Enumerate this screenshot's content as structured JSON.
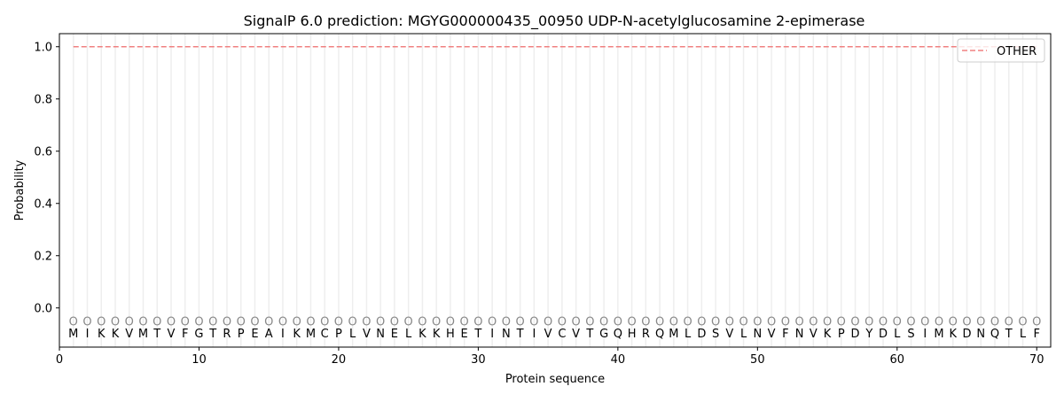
{
  "chart_data": {
    "type": "line",
    "title": "SignalP 6.0 prediction: MGYG000000435_00950 UDP-N-acetylglucosamine 2-epimerase",
    "xlabel": "Protein sequence",
    "ylabel": "Probability",
    "xlim": [
      0,
      71
    ],
    "ylim": [
      -0.15,
      1.05
    ],
    "xticks": [
      0,
      10,
      20,
      30,
      40,
      50,
      60,
      70
    ],
    "yticks": [
      0.0,
      0.2,
      0.4,
      0.6,
      0.8,
      1.0
    ],
    "ytick_labels": [
      "0.0",
      "0.2",
      "0.4",
      "0.6",
      "0.8",
      "1.0"
    ],
    "sequence": [
      "M",
      "I",
      "K",
      "K",
      "V",
      "M",
      "T",
      "V",
      "F",
      "G",
      "T",
      "R",
      "P",
      "E",
      "A",
      "I",
      "K",
      "M",
      "C",
      "P",
      "L",
      "V",
      "N",
      "E",
      "L",
      "K",
      "K",
      "H",
      "E",
      "T",
      "I",
      "N",
      "T",
      "I",
      "V",
      "C",
      "V",
      "T",
      "G",
      "Q",
      "H",
      "R",
      "Q",
      "M",
      "L",
      "D",
      "S",
      "V",
      "L",
      "N",
      "V",
      "F",
      "N",
      "V",
      "K",
      "P",
      "D",
      "Y",
      "D",
      "L",
      "S",
      "I",
      "M",
      "K",
      "D",
      "N",
      "Q",
      "T",
      "L",
      "F"
    ],
    "marker_label": "O",
    "marker_y": -0.05,
    "series": [
      {
        "name": "OTHER",
        "color": "#f08080",
        "style": "dashed",
        "x_start": 1,
        "x_end": 70,
        "value": 1.0
      }
    ],
    "legend": "top-right",
    "grid": "vertical per residue"
  }
}
